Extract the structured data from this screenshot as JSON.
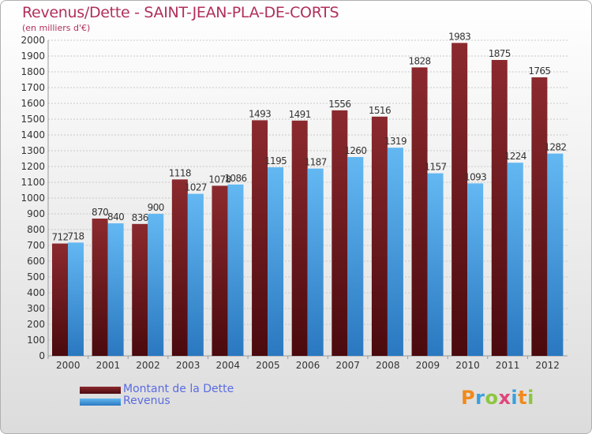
{
  "chart_title": "Revenus/Dette - SAINT-JEAN-PLA-DE-CORTS",
  "chart_subtitle": "(en milliers d'€)",
  "chart_data": {
    "type": "bar",
    "title": "Revenus/Dette - SAINT-JEAN-PLA-DE-CORTS",
    "subtitle": "(en milliers d'€)",
    "categories": [
      "2000",
      "2001",
      "2002",
      "2003",
      "2004",
      "2005",
      "2006",
      "2007",
      "2008",
      "2009",
      "2010",
      "2011",
      "2012"
    ],
    "series": [
      {
        "name": "Montant de la Dette",
        "color": "#7a1e22",
        "values": [
          712,
          870,
          836,
          1118,
          1078,
          1493,
          1491,
          1556,
          1516,
          1828,
          1983,
          1875,
          1765
        ]
      },
      {
        "name": "Revenus",
        "color": "#4aa3e8",
        "values": [
          718,
          840,
          900,
          1027,
          1086,
          1195,
          1187,
          1260,
          1319,
          1157,
          1093,
          1224,
          1282
        ]
      }
    ],
    "ylim": [
      0,
      2000
    ],
    "yticks": [
      0,
      100,
      200,
      300,
      400,
      500,
      600,
      700,
      800,
      900,
      1000,
      1100,
      1200,
      1300,
      1400,
      1500,
      1600,
      1700,
      1800,
      1900,
      2000
    ],
    "grid": true,
    "legend_position": "bottom-left"
  },
  "logo": {
    "text": "Proxiti",
    "letters": [
      {
        "ch": "P",
        "color": "#f08a1c"
      },
      {
        "ch": "r",
        "color": "#3aa0dc"
      },
      {
        "ch": "o",
        "color": "#8cc63f"
      },
      {
        "ch": "x",
        "color": "#e0457b"
      },
      {
        "ch": "i",
        "color": "#3aa0dc"
      },
      {
        "ch": "t",
        "color": "#f08a1c"
      },
      {
        "ch": "i",
        "color": "#8cc63f"
      }
    ]
  }
}
